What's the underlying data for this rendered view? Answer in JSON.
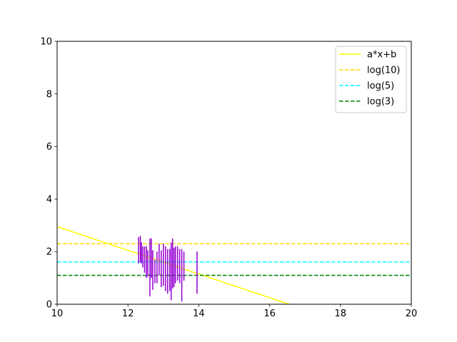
{
  "chart_data": {
    "type": "line",
    "title": "",
    "xlabel": "",
    "ylabel": "",
    "xlim": [
      10,
      20
    ],
    "ylim": [
      0,
      10
    ],
    "xticks": [
      10,
      12,
      14,
      16,
      18,
      20
    ],
    "yticks": [
      0,
      2,
      4,
      6,
      8,
      10
    ],
    "grid": false,
    "legend_position": "top-right",
    "series": [
      {
        "name": "a*x+b",
        "kind": "line",
        "color": "#ffff00",
        "style": "solid",
        "x": [
          10,
          16.56
        ],
        "y": [
          2.95,
          0
        ]
      },
      {
        "name": "log(10)",
        "kind": "hline",
        "color": "#ffd700",
        "style": "dashed",
        "y": 2.3026
      },
      {
        "name": "log(5)",
        "kind": "hline",
        "color": "#00ffff",
        "style": "dashed",
        "y": 1.6094
      },
      {
        "name": "log(3)",
        "kind": "hline",
        "color": "#008000",
        "style": "dashed",
        "y": 1.0986
      }
    ],
    "errorbars": {
      "color": "#9400d3",
      "points": [
        {
          "x": 12.3,
          "y": 2.05,
          "err": 0.5
        },
        {
          "x": 12.35,
          "y": 2.1,
          "err": 0.5
        },
        {
          "x": 12.38,
          "y": 1.95,
          "err": 0.4
        },
        {
          "x": 12.42,
          "y": 1.8,
          "err": 0.4
        },
        {
          "x": 12.47,
          "y": 1.7,
          "err": 0.5
        },
        {
          "x": 12.52,
          "y": 1.6,
          "err": 0.6
        },
        {
          "x": 12.56,
          "y": 1.55,
          "err": 0.5
        },
        {
          "x": 12.62,
          "y": 1.4,
          "err": 1.1
        },
        {
          "x": 12.66,
          "y": 1.75,
          "err": 0.75
        },
        {
          "x": 12.7,
          "y": 1.3,
          "err": 0.75
        },
        {
          "x": 12.76,
          "y": 1.25,
          "err": 0.45
        },
        {
          "x": 12.82,
          "y": 1.4,
          "err": 0.6
        },
        {
          "x": 12.88,
          "y": 1.7,
          "err": 0.6
        },
        {
          "x": 12.94,
          "y": 1.35,
          "err": 0.7
        },
        {
          "x": 13.0,
          "y": 1.5,
          "err": 0.8
        },
        {
          "x": 13.06,
          "y": 1.35,
          "err": 0.85
        },
        {
          "x": 13.12,
          "y": 1.25,
          "err": 0.85
        },
        {
          "x": 13.18,
          "y": 1.3,
          "err": 0.8
        },
        {
          "x": 13.22,
          "y": 1.25,
          "err": 1.1
        },
        {
          "x": 13.26,
          "y": 1.55,
          "err": 0.95
        },
        {
          "x": 13.3,
          "y": 1.4,
          "err": 0.75
        },
        {
          "x": 13.34,
          "y": 1.5,
          "err": 0.7
        },
        {
          "x": 13.4,
          "y": 1.55,
          "err": 0.65
        },
        {
          "x": 13.46,
          "y": 1.45,
          "err": 0.65
        },
        {
          "x": 13.52,
          "y": 1.1,
          "err": 1.0
        },
        {
          "x": 13.58,
          "y": 1.45,
          "err": 0.55
        },
        {
          "x": 13.95,
          "y": 1.2,
          "err": 0.8
        }
      ]
    }
  }
}
